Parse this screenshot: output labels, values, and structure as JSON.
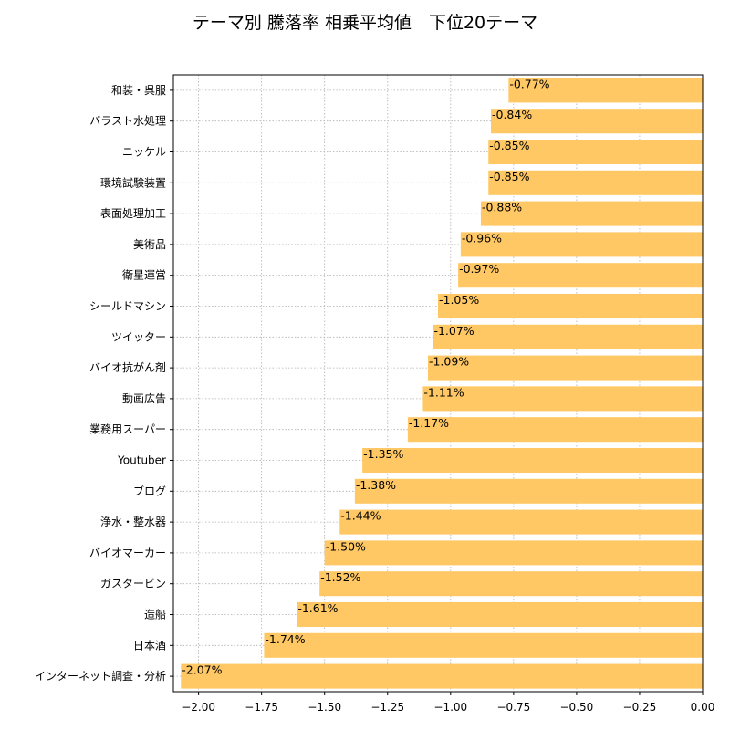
{
  "chart_data": {
    "type": "bar",
    "orientation": "horizontal",
    "title": "テーマ別 騰落率 相乗平均値　下位20テーマ",
    "xlabel": "",
    "ylabel": "",
    "xlim": [
      -2.1,
      0.0
    ],
    "xticks": [
      -2.0,
      -1.75,
      -1.5,
      -1.25,
      -1.0,
      -0.75,
      -0.5,
      -0.25,
      0.0
    ],
    "xtick_labels": [
      "−2.00",
      "−1.75",
      "−1.50",
      "−1.25",
      "−1.00",
      "−0.75",
      "−0.50",
      "−0.25",
      "0.00"
    ],
    "grid": true,
    "bar_color": "#ffc864",
    "categories": [
      "和装・呉服",
      "バラスト水処理",
      "ニッケル",
      "環境試験装置",
      "表面処理加工",
      "美術品",
      "衛星運営",
      "シールドマシン",
      "ツイッター",
      "バイオ抗がん剤",
      "動画広告",
      "業務用スーパー",
      "Youtuber",
      "ブログ",
      "浄水・整水器",
      "バイオマーカー",
      "ガスタービン",
      "造船",
      "日本酒",
      "インターネット調査・分析"
    ],
    "values": [
      -0.77,
      -0.84,
      -0.85,
      -0.85,
      -0.88,
      -0.96,
      -0.97,
      -1.05,
      -1.07,
      -1.09,
      -1.11,
      -1.17,
      -1.35,
      -1.38,
      -1.44,
      -1.5,
      -1.52,
      -1.61,
      -1.74,
      -2.07
    ],
    "value_labels": [
      "-0.77%",
      "-0.84%",
      "-0.85%",
      "-0.85%",
      "-0.88%",
      "-0.96%",
      "-0.97%",
      "-1.05%",
      "-1.07%",
      "-1.09%",
      "-1.11%",
      "-1.17%",
      "-1.35%",
      "-1.38%",
      "-1.44%",
      "-1.50%",
      "-1.52%",
      "-1.61%",
      "-1.74%",
      "-2.07%"
    ]
  }
}
